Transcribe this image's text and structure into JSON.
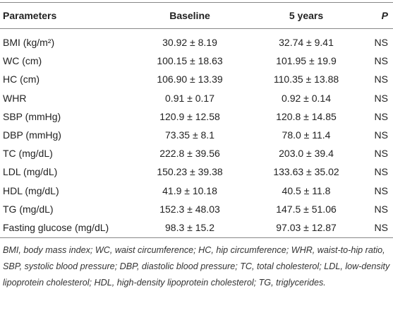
{
  "table": {
    "header": [
      "Parameters",
      "Baseline",
      "5 years",
      "P"
    ],
    "rows": [
      [
        "BMI (kg/m²)",
        "30.92 ± 8.19",
        "32.74 ± 9.41",
        "NS"
      ],
      [
        "WC (cm)",
        "100.15 ± 18.63",
        "101.95 ± 19.9",
        "NS"
      ],
      [
        "HC (cm)",
        "106.90 ± 13.39",
        "110.35 ± 13.88",
        "NS"
      ],
      [
        "WHR",
        "0.91 ± 0.17",
        "0.92 ± 0.14",
        "NS"
      ],
      [
        "SBP (mmHg)",
        "120.9 ± 12.58",
        "120.8 ± 14.85",
        "NS"
      ],
      [
        "DBP (mmHg)",
        "73.35 ± 8.1",
        "78.0 ± 11.4",
        "NS"
      ],
      [
        "TC (mg/dL)",
        "222.8 ± 39.56",
        "203.0 ± 39.4",
        "NS"
      ],
      [
        "LDL (mg/dL)",
        "150.23 ± 39.38",
        "133.63 ± 35.02",
        "NS"
      ],
      [
        "HDL (mg/dL)",
        "41.9 ± 10.18",
        "40.5 ± 11.8",
        "NS"
      ],
      [
        "TG (mg/dL)",
        "152.3 ± 48.03",
        "147.5 ± 51.06",
        "NS"
      ],
      [
        "Fasting glucose (mg/dL)",
        "98.3 ± 15.2",
        "97.03 ± 12.87",
        "NS"
      ]
    ],
    "footnote": "BMI, body mass index; WC, waist circumference; HC, hip circumference; WHR, waist-to-hip ratio, SBP, systolic blood pressure; DBP, diastolic blood pressure; TC, total cholesterol; LDL, low-density lipoprotein cholesterol; HDL, high-density lipoprotein cholesterol; TG, triglycerides."
  }
}
